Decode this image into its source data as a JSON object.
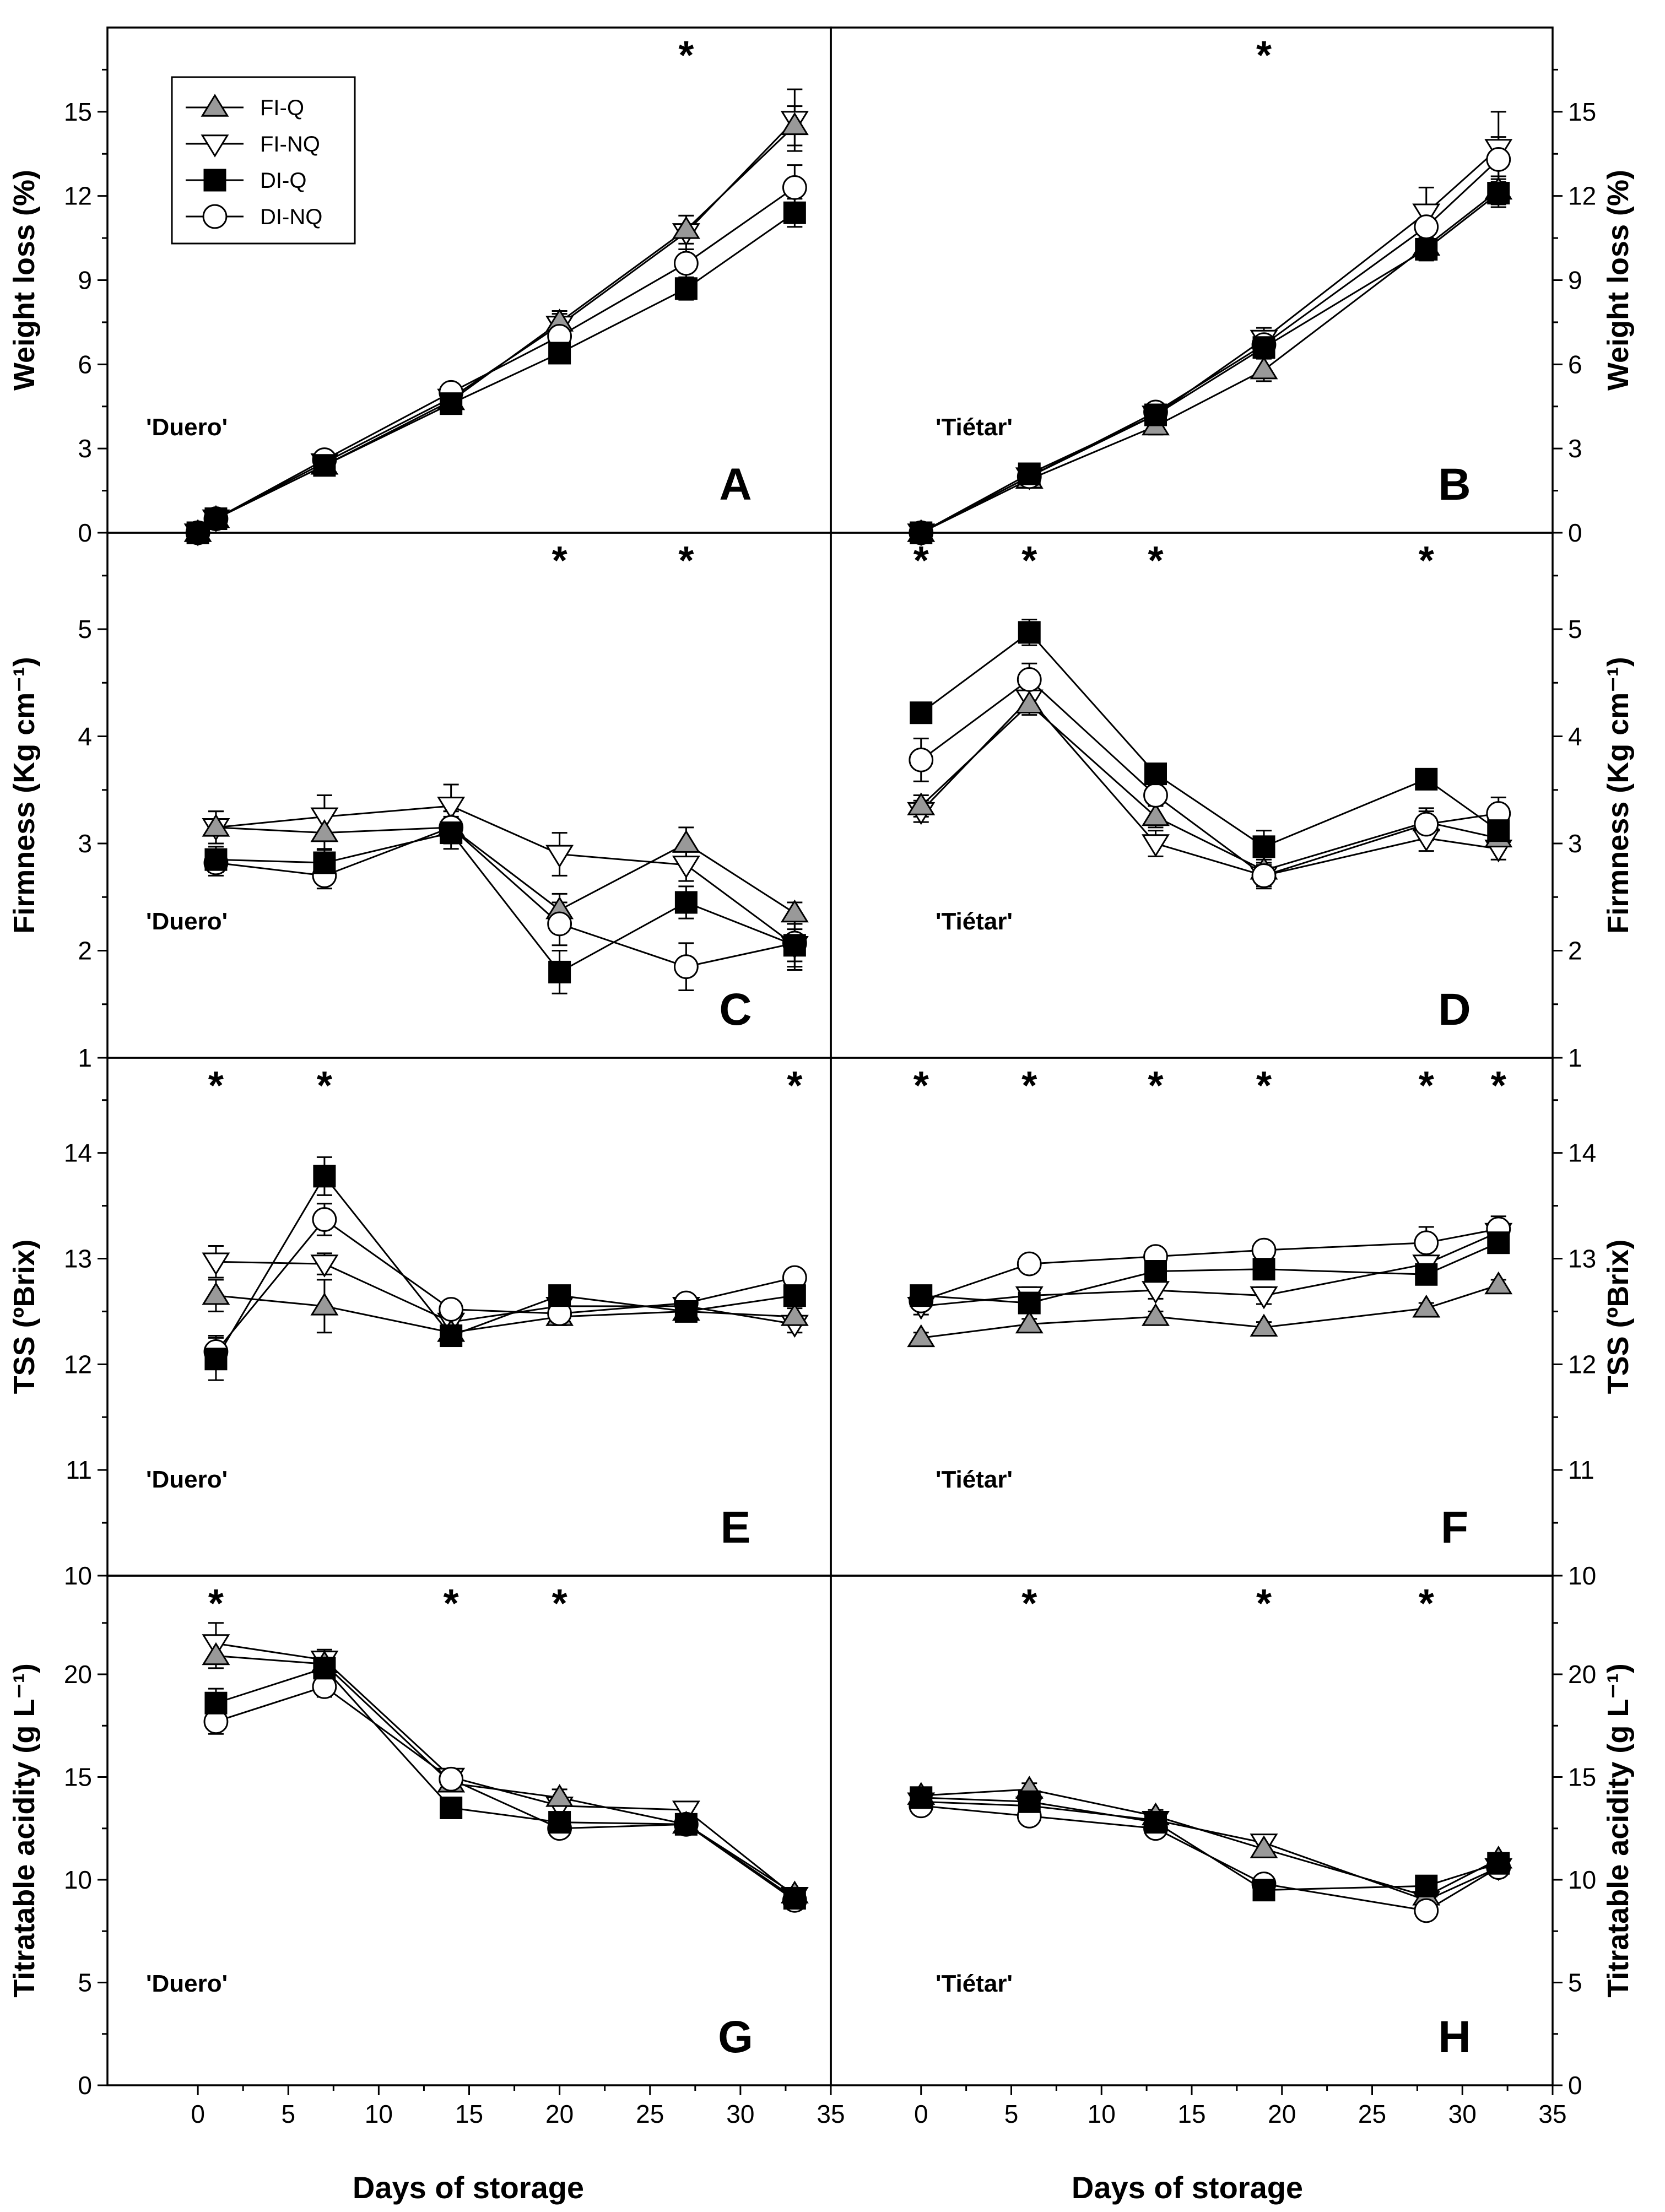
{
  "x_axis_title": "Days of storage",
  "series_styles": [
    {
      "name": "FI-Q",
      "marker": "triangle-up",
      "fill": "#999999"
    },
    {
      "name": "FI-NQ",
      "marker": "triangle-down",
      "fill": "#ffffff"
    },
    {
      "name": "DI-Q",
      "marker": "square",
      "fill": "#000000"
    },
    {
      "name": "DI-NQ",
      "marker": "circle",
      "fill": "#ffffff"
    }
  ],
  "chart_data": [
    {
      "type": "line",
      "panel": "A",
      "cultivar": "'Duero'",
      "ylabel": "Weight loss (%)",
      "xlim": [
        -5,
        35
      ],
      "ylim": [
        0,
        18
      ],
      "xticks": [
        0,
        5,
        10,
        15,
        20,
        25,
        30,
        35
      ],
      "yticks": [
        0,
        3,
        6,
        9,
        12,
        15
      ],
      "significance_days": [
        27
      ],
      "series": [
        {
          "name": "FI-Q",
          "x": [
            0,
            1,
            7,
            14,
            20,
            27,
            33
          ],
          "y": [
            0,
            0.5,
            2.4,
            4.7,
            7.5,
            10.8,
            14.5
          ],
          "err": [
            0.1,
            0.2,
            0.3,
            0.3,
            0.4,
            0.5,
            0.7
          ]
        },
        {
          "name": "FI-NQ",
          "x": [
            0,
            1,
            7,
            14,
            20,
            27,
            33
          ],
          "y": [
            0,
            0.5,
            2.5,
            4.8,
            7.4,
            10.7,
            14.7
          ],
          "err": [
            0.1,
            0.2,
            0.3,
            0.3,
            0.4,
            0.6,
            1.1
          ]
        },
        {
          "name": "DI-Q",
          "x": [
            0,
            1,
            7,
            14,
            20,
            27,
            33
          ],
          "y": [
            0,
            0.5,
            2.4,
            4.6,
            6.4,
            8.7,
            11.4
          ],
          "err": [
            0.1,
            0.2,
            0.2,
            0.3,
            0.3,
            0.4,
            0.5
          ]
        },
        {
          "name": "DI-NQ",
          "x": [
            0,
            1,
            7,
            14,
            20,
            27,
            33
          ],
          "y": [
            0,
            0.5,
            2.6,
            5.0,
            7.0,
            9.6,
            12.3
          ],
          "err": [
            0.1,
            0.2,
            0.3,
            0.3,
            0.4,
            0.5,
            0.8
          ]
        }
      ]
    },
    {
      "type": "line",
      "panel": "B",
      "cultivar": "'Tiétar'",
      "ylabel": "Weight loss (%)",
      "xlim": [
        -5,
        35
      ],
      "ylim": [
        0,
        18
      ],
      "xticks": [
        0,
        5,
        10,
        15,
        20,
        25,
        30,
        35
      ],
      "yticks": [
        0,
        3,
        6,
        9,
        12,
        15
      ],
      "significance_days": [
        19
      ],
      "series": [
        {
          "name": "FI-Q",
          "x": [
            0,
            6,
            13,
            19,
            28,
            32
          ],
          "y": [
            0,
            1.9,
            3.8,
            5.8,
            10.2,
            12.2
          ],
          "err": [
            0.1,
            0.2,
            0.3,
            0.4,
            0.4,
            0.5
          ]
        },
        {
          "name": "FI-NQ",
          "x": [
            0,
            6,
            13,
            19,
            28,
            32
          ],
          "y": [
            0,
            2.0,
            4.2,
            6.9,
            11.4,
            13.7
          ],
          "err": [
            0.1,
            0.2,
            0.3,
            0.4,
            0.9,
            1.3
          ]
        },
        {
          "name": "DI-Q",
          "x": [
            0,
            6,
            13,
            19,
            28,
            32
          ],
          "y": [
            0,
            2.1,
            4.2,
            6.6,
            10.1,
            12.1
          ],
          "err": [
            0.1,
            0.2,
            0.3,
            0.3,
            0.4,
            0.5
          ]
        },
        {
          "name": "DI-NQ",
          "x": [
            0,
            6,
            13,
            19,
            28,
            32
          ],
          "y": [
            0,
            2.0,
            4.3,
            6.7,
            10.9,
            13.3
          ],
          "err": [
            0.1,
            0.2,
            0.3,
            0.4,
            0.5,
            0.8
          ]
        }
      ]
    },
    {
      "type": "line",
      "panel": "C",
      "cultivar": "'Duero'",
      "ylabel": "Firmness (Kg cm⁻¹)",
      "xlim": [
        -5,
        35
      ],
      "ylim": [
        1,
        5.9
      ],
      "xticks": [
        0,
        5,
        10,
        15,
        20,
        25,
        30,
        35
      ],
      "yticks": [
        1,
        2,
        3,
        4,
        5
      ],
      "significance_days": [
        20,
        27
      ],
      "series": [
        {
          "name": "FI-Q",
          "x": [
            1,
            7,
            14,
            20,
            27,
            33
          ],
          "y": [
            3.15,
            3.1,
            3.15,
            2.38,
            3.0,
            2.35
          ],
          "err": [
            0.15,
            0.15,
            0.15,
            0.15,
            0.15,
            0.1
          ]
        },
        {
          "name": "FI-NQ",
          "x": [
            1,
            7,
            14,
            20,
            27,
            33
          ],
          "y": [
            3.15,
            3.25,
            3.35,
            2.9,
            2.8,
            2.05
          ],
          "err": [
            0.15,
            0.2,
            0.2,
            0.2,
            0.15,
            0.15
          ]
        },
        {
          "name": "DI-Q",
          "x": [
            1,
            7,
            14,
            20,
            27,
            33
          ],
          "y": [
            2.85,
            2.82,
            3.1,
            1.8,
            2.45,
            2.05
          ],
          "err": [
            0.12,
            0.12,
            0.15,
            0.2,
            0.15,
            0.2
          ]
        },
        {
          "name": "DI-NQ",
          "x": [
            1,
            7,
            14,
            20,
            27,
            33
          ],
          "y": [
            2.82,
            2.7,
            3.15,
            2.25,
            1.85,
            2.07
          ],
          "err": [
            0.12,
            0.12,
            0.15,
            0.2,
            0.22,
            0.25
          ]
        }
      ]
    },
    {
      "type": "line",
      "panel": "D",
      "cultivar": "'Tiétar'",
      "ylabel": "Firmness (Kg cm⁻¹)",
      "xlim": [
        -5,
        35
      ],
      "ylim": [
        1,
        5.9
      ],
      "xticks": [
        0,
        5,
        10,
        15,
        20,
        25,
        30,
        35
      ],
      "yticks": [
        1,
        2,
        3,
        4,
        5
      ],
      "significance_days": [
        0,
        6,
        13,
        28
      ],
      "series": [
        {
          "name": "FI-Q",
          "x": [
            0,
            6,
            13,
            19,
            28,
            32
          ],
          "y": [
            3.35,
            4.3,
            3.25,
            2.75,
            3.2,
            3.05
          ],
          "err": [
            0.1,
            0.1,
            0.1,
            0.1,
            0.1,
            0.1
          ]
        },
        {
          "name": "FI-NQ",
          "x": [
            0,
            6,
            13,
            19,
            28,
            32
          ],
          "y": [
            3.3,
            4.35,
            3.0,
            2.7,
            3.05,
            2.95
          ],
          "err": [
            0.1,
            0.1,
            0.12,
            0.12,
            0.12,
            0.1
          ]
        },
        {
          "name": "DI-Q",
          "x": [
            0,
            6,
            13,
            19,
            28,
            32
          ],
          "y": [
            4.22,
            4.97,
            3.65,
            2.97,
            3.6,
            3.12
          ],
          "err": [
            0.05,
            0.12,
            0.08,
            0.15,
            0.05,
            0.1
          ]
        },
        {
          "name": "DI-NQ",
          "x": [
            0,
            6,
            13,
            19,
            28,
            32
          ],
          "y": [
            3.78,
            4.53,
            3.45,
            2.7,
            3.18,
            3.28
          ],
          "err": [
            0.2,
            0.15,
            0.1,
            0.1,
            0.15,
            0.15
          ]
        }
      ]
    },
    {
      "type": "line",
      "panel": "E",
      "cultivar": "'Duero'",
      "ylabel": "TSS (ºBrix)",
      "xlim": [
        -5,
        35
      ],
      "ylim": [
        10,
        14.9
      ],
      "xticks": [
        0,
        5,
        10,
        15,
        20,
        25,
        30,
        35
      ],
      "yticks": [
        10,
        11,
        12,
        13,
        14
      ],
      "significance_days": [
        1,
        7,
        33
      ],
      "series": [
        {
          "name": "FI-Q",
          "x": [
            1,
            7,
            14,
            20,
            27,
            33
          ],
          "y": [
            12.65,
            12.55,
            12.3,
            12.45,
            12.5,
            12.45
          ],
          "err": [
            0.15,
            0.25,
            0.08,
            0.08,
            0.06,
            0.08
          ]
        },
        {
          "name": "FI-NQ",
          "x": [
            1,
            7,
            14,
            20,
            27,
            33
          ],
          "y": [
            12.97,
            12.95,
            12.4,
            12.55,
            12.55,
            12.38
          ],
          "err": [
            0.15,
            0.1,
            0.1,
            0.08,
            0.06,
            0.08
          ]
        },
        {
          "name": "DI-Q",
          "x": [
            1,
            7,
            14,
            20,
            27,
            33
          ],
          "y": [
            12.05,
            13.78,
            12.27,
            12.65,
            12.5,
            12.65
          ],
          "err": [
            0.2,
            0.18,
            0.08,
            0.08,
            0.06,
            0.08
          ]
        },
        {
          "name": "DI-NQ",
          "x": [
            1,
            7,
            14,
            20,
            27,
            33
          ],
          "y": [
            12.12,
            13.37,
            12.52,
            12.48,
            12.58,
            12.82
          ],
          "err": [
            0.15,
            0.15,
            0.08,
            0.08,
            0.06,
            0.06
          ]
        }
      ]
    },
    {
      "type": "line",
      "panel": "F",
      "cultivar": "'Tiétar'",
      "ylabel": "TSS (ºBrix)",
      "xlim": [
        -5,
        35
      ],
      "ylim": [
        10,
        14.9
      ],
      "xticks": [
        0,
        5,
        10,
        15,
        20,
        25,
        30,
        35
      ],
      "yticks": [
        10,
        11,
        12,
        13,
        14
      ],
      "significance_days": [
        0,
        6,
        13,
        19,
        28,
        32
      ],
      "series": [
        {
          "name": "FI-Q",
          "x": [
            0,
            6,
            13,
            19,
            28,
            32
          ],
          "y": [
            12.25,
            12.38,
            12.45,
            12.35,
            12.53,
            12.75
          ],
          "err": [
            0.05,
            0.05,
            0.05,
            0.05,
            0.05,
            0.05
          ]
        },
        {
          "name": "FI-NQ",
          "x": [
            0,
            6,
            13,
            19,
            28,
            32
          ],
          "y": [
            12.55,
            12.65,
            12.7,
            12.65,
            12.95,
            13.25
          ],
          "err": [
            0.08,
            0.08,
            0.08,
            0.08,
            0.08,
            0.08
          ]
        },
        {
          "name": "DI-Q",
          "x": [
            0,
            6,
            13,
            19,
            28,
            32
          ],
          "y": [
            12.65,
            12.58,
            12.88,
            12.9,
            12.85,
            13.15
          ],
          "err": [
            0.08,
            0.08,
            0.08,
            0.08,
            0.08,
            0.08
          ]
        },
        {
          "name": "DI-NQ",
          "x": [
            0,
            6,
            13,
            19,
            28,
            32
          ],
          "y": [
            12.6,
            12.95,
            13.02,
            13.08,
            13.15,
            13.28
          ],
          "err": [
            0.08,
            0.06,
            0.06,
            0.06,
            0.15,
            0.12
          ]
        }
      ]
    },
    {
      "type": "line",
      "panel": "G",
      "cultivar": "'Duero'",
      "ylabel": "Titratable acidity (g L⁻¹)",
      "xlim": [
        -5,
        35
      ],
      "ylim": [
        0,
        24.8
      ],
      "xticks": [
        0,
        5,
        10,
        15,
        20,
        25,
        30,
        35
      ],
      "yticks": [
        0,
        5,
        10,
        15,
        20
      ],
      "significance_days": [
        1,
        14,
        20
      ],
      "series": [
        {
          "name": "FI-Q",
          "x": [
            1,
            7,
            14,
            20,
            27,
            33
          ],
          "y": [
            20.9,
            20.5,
            14.7,
            14.0,
            12.7,
            9.3
          ],
          "err": [
            0.6,
            0.5,
            0.4,
            0.4,
            0.3,
            0.3
          ]
        },
        {
          "name": "FI-NQ",
          "x": [
            1,
            7,
            14,
            20,
            27,
            33
          ],
          "y": [
            21.5,
            20.7,
            15.0,
            13.6,
            13.4,
            9.2
          ],
          "err": [
            1.0,
            0.5,
            0.4,
            0.4,
            0.4,
            0.3
          ]
        },
        {
          "name": "DI-Q",
          "x": [
            1,
            7,
            14,
            20,
            27,
            33
          ],
          "y": [
            18.6,
            20.3,
            13.5,
            12.8,
            12.7,
            9.1
          ],
          "err": [
            0.7,
            0.6,
            0.4,
            0.4,
            0.3,
            0.3
          ]
        },
        {
          "name": "DI-NQ",
          "x": [
            1,
            7,
            14,
            20,
            27,
            33
          ],
          "y": [
            17.7,
            19.4,
            14.9,
            12.5,
            12.7,
            9.0
          ],
          "err": [
            0.6,
            0.5,
            0.4,
            0.4,
            0.3,
            0.3
          ]
        }
      ]
    },
    {
      "type": "line",
      "panel": "H",
      "cultivar": "'Tiétar'",
      "ylabel": "Titratable acidity (g L⁻¹)",
      "xlim": [
        -5,
        35
      ],
      "ylim": [
        0,
        24.8
      ],
      "xticks": [
        0,
        5,
        10,
        15,
        20,
        25,
        30,
        35
      ],
      "yticks": [
        0,
        5,
        10,
        15,
        20
      ],
      "significance_days": [
        6,
        19,
        28
      ],
      "series": [
        {
          "name": "FI-Q",
          "x": [
            0,
            6,
            13,
            19,
            28,
            32
          ],
          "y": [
            14.1,
            14.4,
            13.1,
            11.5,
            9.2,
            11.0
          ],
          "err": [
            0.2,
            0.3,
            0.3,
            0.3,
            0.3,
            0.3
          ]
        },
        {
          "name": "FI-NQ",
          "x": [
            0,
            6,
            13,
            19,
            28,
            32
          ],
          "y": [
            13.8,
            13.6,
            12.9,
            11.8,
            9.0,
            10.6
          ],
          "err": [
            0.2,
            0.3,
            0.3,
            0.3,
            0.3,
            0.3
          ]
        },
        {
          "name": "DI-Q",
          "x": [
            0,
            6,
            13,
            19,
            28,
            32
          ],
          "y": [
            14.0,
            13.8,
            12.8,
            9.5,
            9.7,
            10.8
          ],
          "err": [
            0.2,
            0.3,
            0.3,
            0.4,
            0.3,
            0.3
          ]
        },
        {
          "name": "DI-NQ",
          "x": [
            0,
            6,
            13,
            19,
            28,
            32
          ],
          "y": [
            13.6,
            13.1,
            12.5,
            9.8,
            8.5,
            10.6
          ],
          "err": [
            0.2,
            0.3,
            0.3,
            0.3,
            0.3,
            0.3
          ]
        }
      ]
    }
  ]
}
